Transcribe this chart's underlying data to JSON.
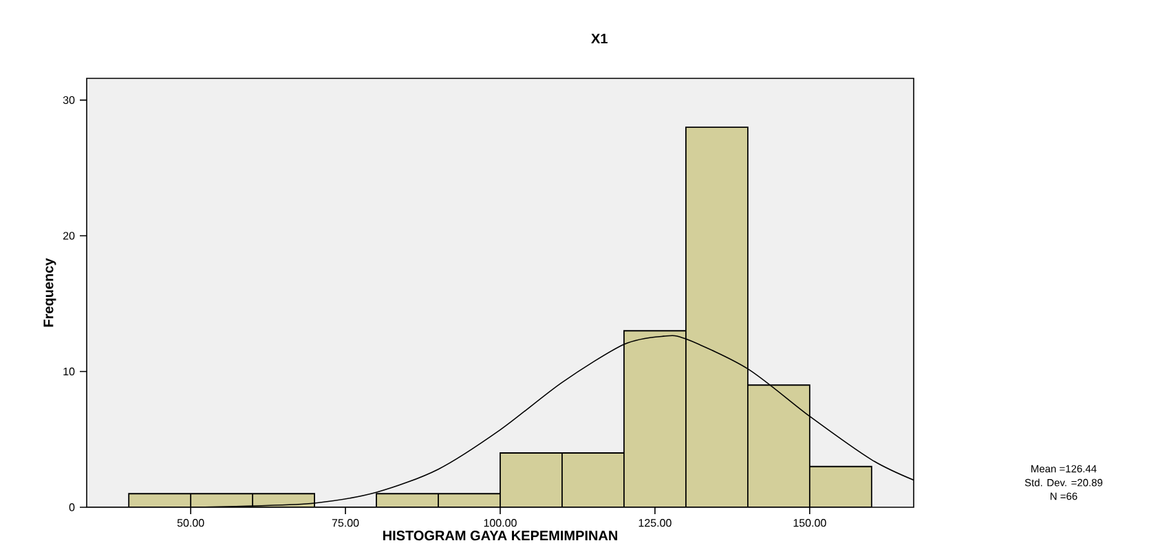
{
  "chart_data": {
    "type": "histogram",
    "title": "X1",
    "xlabel": "HISTOGRAM GAYA KEPEMIMPINAN",
    "ylabel": "Frequency",
    "bins": [
      40,
      50,
      60,
      70,
      80,
      90,
      100,
      110,
      120,
      130,
      140,
      150,
      160
    ],
    "values": [
      1,
      1,
      1,
      0,
      1,
      1,
      4,
      4,
      13,
      28,
      9,
      3
    ],
    "color": "#d3cf9a",
    "series": [
      {
        "type": "line",
        "color": "#000000",
        "x": [
          33.2,
          50,
          60,
          70,
          80,
          90,
          100,
          110,
          120,
          126.4,
          130,
          140,
          150,
          160,
          166.8
        ],
        "values": [
          0,
          0,
          0.1,
          0.3,
          1.1,
          2.8,
          5.7,
          9.2,
          12,
          12.6,
          12.4,
          10.2,
          6.7,
          3.5,
          2
        ]
      }
    ],
    "xlim": [
      33.2,
      166.8
    ],
    "ylim": [
      0,
      31.6
    ],
    "xticks": [
      {
        "value": 50,
        "label": "50.00"
      },
      {
        "value": 75,
        "label": "75.00"
      },
      {
        "value": 100,
        "label": "100.00"
      },
      {
        "value": 125,
        "label": "125.00"
      },
      {
        "value": 150,
        "label": "150.00"
      }
    ],
    "yticks": [
      0,
      10,
      20,
      30
    ],
    "annotations": [
      "Mean =126.44",
      "Std. Dev. =20.89",
      "N =66"
    ]
  }
}
